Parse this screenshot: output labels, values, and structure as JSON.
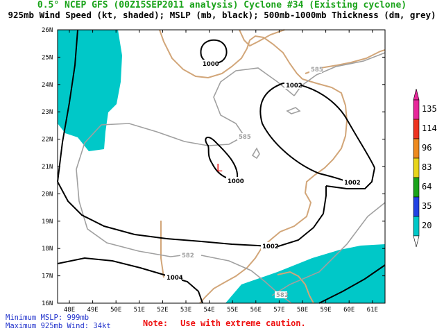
{
  "title_line1": "0.5° NCEP GFS (00Z15SEP2011 analysis) Cyclone #34 (Existing cyclone)",
  "title_line2": "925mb Wind Speed (kt, shaded); MSLP (mb, black); 500mb-1000mb Thickness (dm, grey)",
  "lat_labels": [
    "26N",
    "25N",
    "24N",
    "23N",
    "22N",
    "21N",
    "20N",
    "19N",
    "18N",
    "17N",
    "16N"
  ],
  "lon_labels": [
    "48E",
    "49E",
    "50E",
    "51E",
    "52E",
    "53E",
    "54E",
    "55E",
    "56E",
    "57E",
    "58E",
    "59E",
    "60E",
    "61E"
  ],
  "isobar_labels": [
    "1000",
    "1000",
    "1002",
    "1002",
    "1002",
    "1004"
  ],
  "thickness_labels": [
    "585",
    "585",
    "582",
    "582"
  ],
  "low_marker": "L",
  "legend": {
    "values": [
      "135",
      "114",
      "96",
      "83",
      "64",
      "35",
      "20"
    ],
    "colors": [
      "#e8279b",
      "#ee3320",
      "#ee8a1e",
      "#e8d51a",
      "#1aa31a",
      "#2243e3",
      "#00c8c8"
    ]
  },
  "stats": {
    "min_mslp": "Minimum MSLP: 999mb",
    "max_wind": "Maximum 925mb Wind: 34kt"
  },
  "note": {
    "label": "Note:",
    "text": "Use with extreme caution."
  },
  "colors": {
    "land_outline": "#d2a679",
    "wind_shade": "#00c8c8",
    "isobar": "#000000",
    "thickness": "#a0a0a0",
    "low": "#ee1111"
  }
}
